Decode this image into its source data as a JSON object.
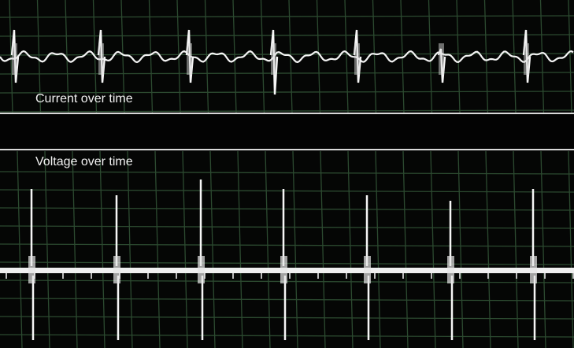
{
  "panels": [
    {
      "label": "Current over time"
    },
    {
      "label": "Voltage over time"
    }
  ]
}
